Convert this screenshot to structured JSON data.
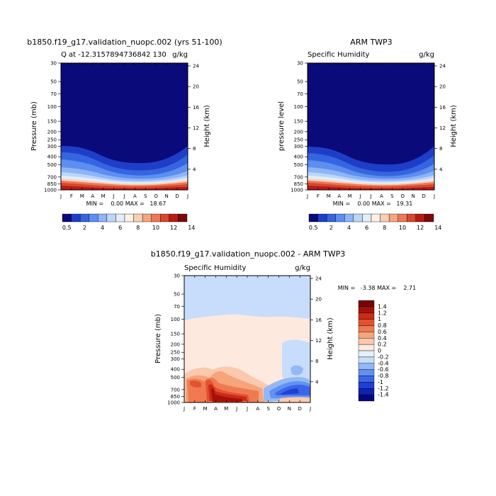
{
  "colors": {
    "palette": [
      "#0a0a7a",
      "#1e3ec8",
      "#3565e0",
      "#5d8ef0",
      "#8db5f7",
      "#bcd6fa",
      "#e3eefb",
      "#fdf0e6",
      "#f8cfb2",
      "#f3a680",
      "#ea7a56",
      "#d8462e",
      "#b81a14",
      "#7e0808"
    ],
    "diff_palette": [
      "#060683",
      "#1020b0",
      "#1f3fd5",
      "#3a66e8",
      "#6390f2",
      "#93b8f8",
      "#c8dcfb",
      "#e6f0fc",
      "#fde9de",
      "#fac9ae",
      "#f6a47c",
      "#ef7a52",
      "#e3522f",
      "#cb2a18",
      "#a61009",
      "#790404"
    ]
  },
  "chart_data": [
    {
      "type": "heatmap",
      "title": "b1850.f19_g17.validation_nuopc.002 (yrs 51-100)",
      "subtitle_left": "Q at -12.3157894736842 130",
      "units": "g/kg",
      "ylabel": "Pressure (mb)",
      "ylabel_right": "Height (km)",
      "x_ticks": [
        "J",
        "F",
        "M",
        "A",
        "M",
        "J",
        "J",
        "A",
        "S",
        "O",
        "N",
        "D",
        "J"
      ],
      "y_ticks": [
        "30",
        "50",
        "70",
        "100",
        "150",
        "200",
        "250",
        "300",
        "400",
        "500",
        "700",
        "850",
        "1000"
      ],
      "y_right_ticks": [
        "24",
        "20",
        "16",
        "12",
        "8",
        "4"
      ],
      "min_max": "MIN =    0.00 MAX =   18.67",
      "min": 0.0,
      "max": 18.67,
      "colorbar_labels": [
        "0.5",
        "2",
        "4",
        "6",
        "8",
        "10",
        "12",
        "14"
      ]
    },
    {
      "type": "heatmap",
      "title": "ARM TWP3",
      "subtitle_left": "Specific Humidity",
      "units": "g/kg",
      "ylabel": "pressure level",
      "ylabel_right": "Height (km)",
      "x_ticks": [
        "J",
        "F",
        "M",
        "A",
        "M",
        "J",
        "J",
        "A",
        "S",
        "O",
        "N",
        "D",
        "J"
      ],
      "y_ticks": [
        "30",
        "50",
        "70",
        "100",
        "150",
        "200",
        "250",
        "300",
        "400",
        "500",
        "700",
        "850",
        "1000"
      ],
      "y_right_ticks": [
        "24",
        "20",
        "16",
        "12",
        "8",
        "4"
      ],
      "min_max": "MIN =    0.00 MAX =   19.31",
      "min": 0.0,
      "max": 19.31,
      "colorbar_labels": [
        "0.5",
        "2",
        "4",
        "6",
        "8",
        "10",
        "12",
        "14"
      ]
    },
    {
      "type": "heatmap",
      "title": "b1850.f19_g17.validation_nuopc.002 - ARM TWP3",
      "subtitle_left": "Specific Humidity",
      "units": "g/kg",
      "ylabel": "Pressure (mb)",
      "ylabel_right": "Height (km)",
      "x_ticks": [
        "J",
        "F",
        "M",
        "A",
        "M",
        "J",
        "J",
        "A",
        "S",
        "O",
        "N",
        "D",
        "J"
      ],
      "y_ticks": [
        "30",
        "50",
        "70",
        "100",
        "150",
        "200",
        "250",
        "300",
        "400",
        "500",
        "700",
        "850",
        "1000"
      ],
      "y_right_ticks": [
        "24",
        "20",
        "16",
        "12",
        "8",
        "4"
      ],
      "min_max": "MIN =   -3.38 MAX =    2.71",
      "min": -3.38,
      "max": 2.71,
      "colorbar_labels": [
        "1.4",
        "1.2",
        "1",
        "0.8",
        "0.6",
        "0.4",
        "0.2",
        "0",
        "-0.2",
        "-0.4",
        "-0.6",
        "-0.8",
        "-1",
        "-1.2",
        "-1.4"
      ]
    }
  ]
}
